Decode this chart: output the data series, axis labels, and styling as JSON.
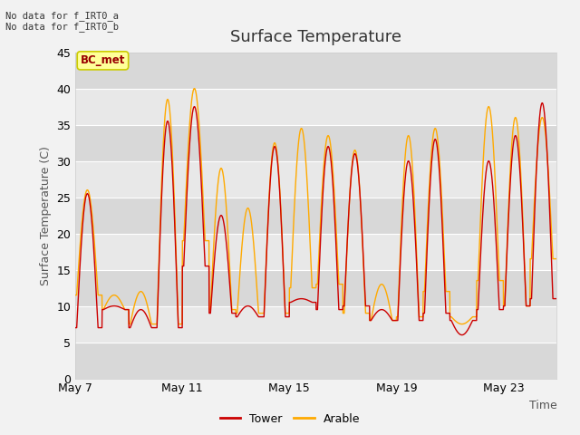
{
  "title": "Surface Temperature",
  "ylabel": "Surface Temperature (C)",
  "xlabel": "Time",
  "annotation_text": "No data for f_IRT0_a\nNo data for f_IRT0_b",
  "bc_met_label": "BC_met",
  "ylim": [
    0,
    45
  ],
  "yticks": [
    0,
    5,
    10,
    15,
    20,
    25,
    30,
    35,
    40,
    45
  ],
  "xtick_labels": [
    "May 7",
    "May 11",
    "May 15",
    "May 19",
    "May 23"
  ],
  "xtick_positions": [
    0,
    4,
    8,
    12,
    16
  ],
  "tower_color": "#cc0000",
  "arable_color": "#ffaa00",
  "fig_bg_color": "#f2f2f2",
  "plot_bg_color": "#e8e8e8",
  "stripe_light": "#e8e8e8",
  "stripe_dark": "#d8d8d8",
  "title_fontsize": 13,
  "axis_fontsize": 9,
  "tick_fontsize": 9,
  "linewidth": 1.0,
  "n_days": 18,
  "points_per_day": 144,
  "tower_day_peaks": [
    25.5,
    10.0,
    9.5,
    35.5,
    37.5,
    22.5,
    10.0,
    32.0,
    11.0,
    32.0,
    31.0,
    9.5,
    30.0,
    33.0,
    6.0,
    30.0,
    33.5,
    38.0
  ],
  "tower_night_mins": [
    7.0,
    9.5,
    7.0,
    7.0,
    15.5,
    9.0,
    8.5,
    8.5,
    10.5,
    9.5,
    10.0,
    8.0,
    8.0,
    9.0,
    8.0,
    9.5,
    10.0,
    11.0
  ],
  "arable_day_peaks": [
    26.0,
    11.5,
    12.0,
    38.5,
    40.0,
    29.0,
    23.5,
    32.5,
    34.5,
    33.5,
    31.5,
    13.0,
    33.5,
    34.5,
    7.5,
    37.5,
    36.0,
    36.0
  ],
  "arable_night_mins": [
    11.5,
    9.5,
    7.5,
    7.5,
    19.0,
    9.5,
    9.0,
    9.0,
    12.5,
    13.0,
    9.0,
    8.0,
    8.5,
    12.0,
    8.5,
    13.5,
    10.0,
    16.5
  ]
}
